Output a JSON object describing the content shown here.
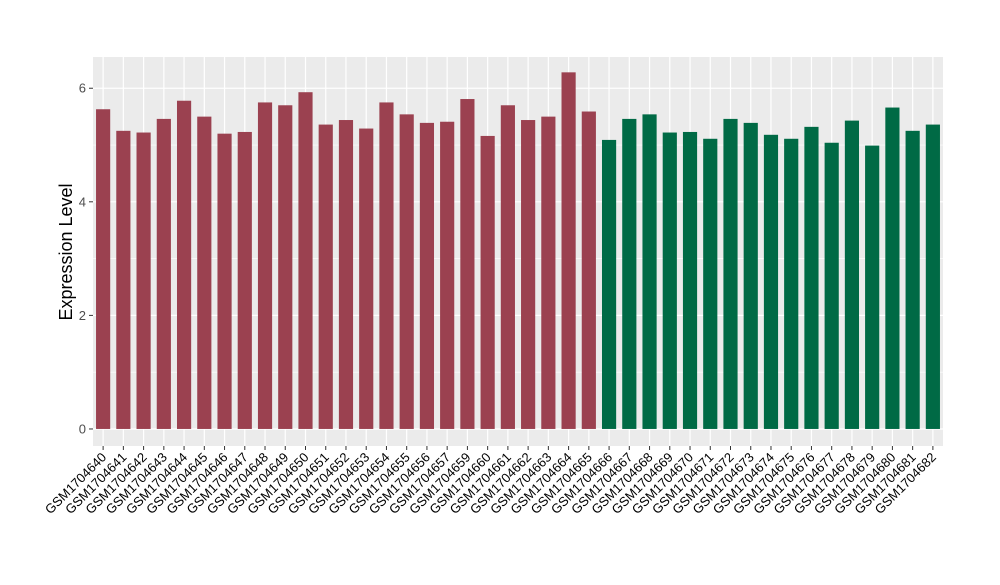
{
  "chart_data": {
    "type": "bar",
    "ylabel": "Expression Level",
    "xlabel": "",
    "ylim": [
      -0.3,
      6.55
    ],
    "yticks": [
      0,
      2,
      4,
      6
    ],
    "grid": true,
    "legend": "none",
    "categories": [
      "GSM1704640",
      "GSM1704641",
      "GSM1704642",
      "GSM1704643",
      "GSM1704644",
      "GSM1704645",
      "GSM1704646",
      "GSM1704647",
      "GSM1704648",
      "GSM1704649",
      "GSM1704650",
      "GSM1704651",
      "GSM1704652",
      "GSM1704653",
      "GSM1704654",
      "GSM1704655",
      "GSM1704656",
      "GSM1704657",
      "GSM1704659",
      "GSM1704660",
      "GSM1704661",
      "GSM1704662",
      "GSM1704663",
      "GSM1704664",
      "GSM1704665",
      "GSM1704666",
      "GSM1704667",
      "GSM1704668",
      "GSM1704669",
      "GSM1704670",
      "GSM1704671",
      "GSM1704672",
      "GSM1704673",
      "GSM1704674",
      "GSM1704675",
      "GSM1704676",
      "GSM1704677",
      "GSM1704678",
      "GSM1704679",
      "GSM1704680",
      "GSM1704681",
      "GSM1704682"
    ],
    "values": [
      5.63,
      5.25,
      5.22,
      5.46,
      5.78,
      5.5,
      5.2,
      5.23,
      5.75,
      5.7,
      5.93,
      5.36,
      5.44,
      5.29,
      5.75,
      5.54,
      5.39,
      5.41,
      5.81,
      5.16,
      5.7,
      5.44,
      5.5,
      6.28,
      5.59,
      5.09,
      5.46,
      5.54,
      5.22,
      5.23,
      5.11,
      5.46,
      5.39,
      5.18,
      5.11,
      5.32,
      5.04,
      5.43,
      4.99,
      5.66,
      5.25,
      5.36
    ],
    "group_colors": [
      "#9B4150",
      "#006A45"
    ],
    "group_index": [
      0,
      0,
      0,
      0,
      0,
      0,
      0,
      0,
      0,
      0,
      0,
      0,
      0,
      0,
      0,
      0,
      0,
      0,
      0,
      0,
      0,
      0,
      0,
      0,
      0,
      1,
      1,
      1,
      1,
      1,
      1,
      1,
      1,
      1,
      1,
      1,
      1,
      1,
      1,
      1,
      1,
      1
    ],
    "panel_background": "#EBEBEB",
    "grid_color": "#FFFFFF"
  }
}
